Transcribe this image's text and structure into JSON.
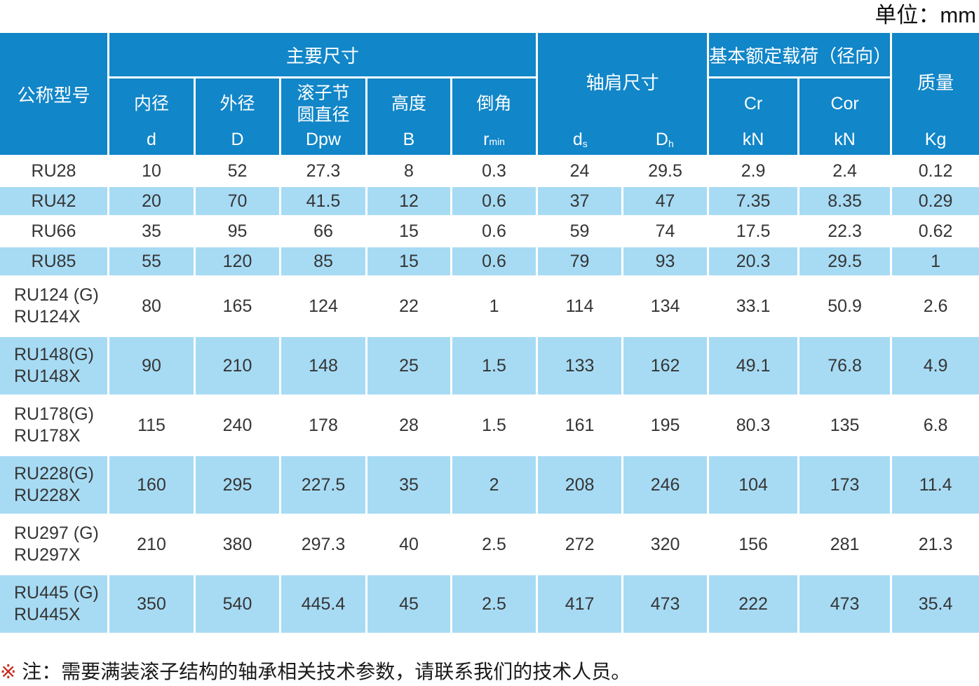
{
  "unit_label": "单位：mm",
  "colors": {
    "header_blue": "#1186c8",
    "row_alt_blue": "#a7dbf4",
    "row_white": "#ffffff",
    "note_red": "#c82a1c",
    "text_dark": "#353535"
  },
  "header": {
    "model_label": "公称型号",
    "main_dims_label": "主要尺寸",
    "sub_cols": [
      {
        "lines": [
          "内径"
        ],
        "symbol": "d",
        "symbol_sub": ""
      },
      {
        "lines": [
          "外径"
        ],
        "symbol": "D",
        "symbol_sub": ""
      },
      {
        "lines": [
          "滚子节",
          "圆直径"
        ],
        "symbol": "Dpw",
        "symbol_sub": ""
      },
      {
        "lines": [
          "高度"
        ],
        "symbol": "B",
        "symbol_sub": ""
      },
      {
        "lines": [
          "倒角"
        ],
        "symbol": "r",
        "symbol_sub": "min"
      }
    ],
    "shoulder": {
      "label": "轴肩尺寸",
      "cols": [
        {
          "base": "d",
          "sub": "s"
        },
        {
          "base": "D",
          "sub": "h"
        }
      ]
    },
    "load": {
      "label": "基本额定载荷（径向）",
      "cols": [
        {
          "symbol": "Cr",
          "unit": "kN"
        },
        {
          "symbol": "Cor",
          "unit": "kN"
        }
      ]
    },
    "mass": {
      "label": "质量",
      "unit": "Kg"
    }
  },
  "rows": [
    {
      "model": [
        "RU28"
      ],
      "values": [
        "10",
        "52",
        "27.3",
        "8",
        "0.3",
        "24",
        "29.5",
        "2.9",
        "2.4",
        "0.12"
      ]
    },
    {
      "model": [
        "RU42"
      ],
      "values": [
        "20",
        "70",
        "41.5",
        "12",
        "0.6",
        "37",
        "47",
        "7.35",
        "8.35",
        "0.29"
      ]
    },
    {
      "model": [
        "RU66"
      ],
      "values": [
        "35",
        "95",
        "66",
        "15",
        "0.6",
        "59",
        "74",
        "17.5",
        "22.3",
        "0.62"
      ]
    },
    {
      "model": [
        "RU85"
      ],
      "values": [
        "55",
        "120",
        "85",
        "15",
        "0.6",
        "79",
        "93",
        "20.3",
        "29.5",
        "1"
      ]
    },
    {
      "model": [
        "RU124 (G)",
        "RU124X"
      ],
      "values": [
        "80",
        "165",
        "124",
        "22",
        "1",
        "114",
        "134",
        "33.1",
        "50.9",
        "2.6"
      ]
    },
    {
      "model": [
        "RU148(G)",
        "RU148X"
      ],
      "values": [
        "90",
        "210",
        "148",
        "25",
        "1.5",
        "133",
        "162",
        "49.1",
        "76.8",
        "4.9"
      ]
    },
    {
      "model": [
        "RU178(G)",
        "RU178X"
      ],
      "values": [
        "115",
        "240",
        "178",
        "28",
        "1.5",
        "161",
        "195",
        "80.3",
        "135",
        "6.8"
      ]
    },
    {
      "model": [
        "RU228(G)",
        "RU228X"
      ],
      "values": [
        "160",
        "295",
        "227.5",
        "35",
        "2",
        "208",
        "246",
        "104",
        "173",
        "11.4"
      ]
    },
    {
      "model": [
        "RU297 (G)",
        "RU297X"
      ],
      "values": [
        "210",
        "380",
        "297.3",
        "40",
        "2.5",
        "272",
        "320",
        "156",
        "281",
        "21.3"
      ]
    },
    {
      "model": [
        "RU445 (G)",
        "RU445X"
      ],
      "values": [
        "350",
        "540",
        "445.4",
        "45",
        "2.5",
        "417",
        "473",
        "222",
        "473",
        "35.4"
      ]
    }
  ],
  "note": {
    "marker": "※",
    "text": " 注：需要满装滚子结构的轴承相关技术参数，请联系我们的技术人员。"
  }
}
